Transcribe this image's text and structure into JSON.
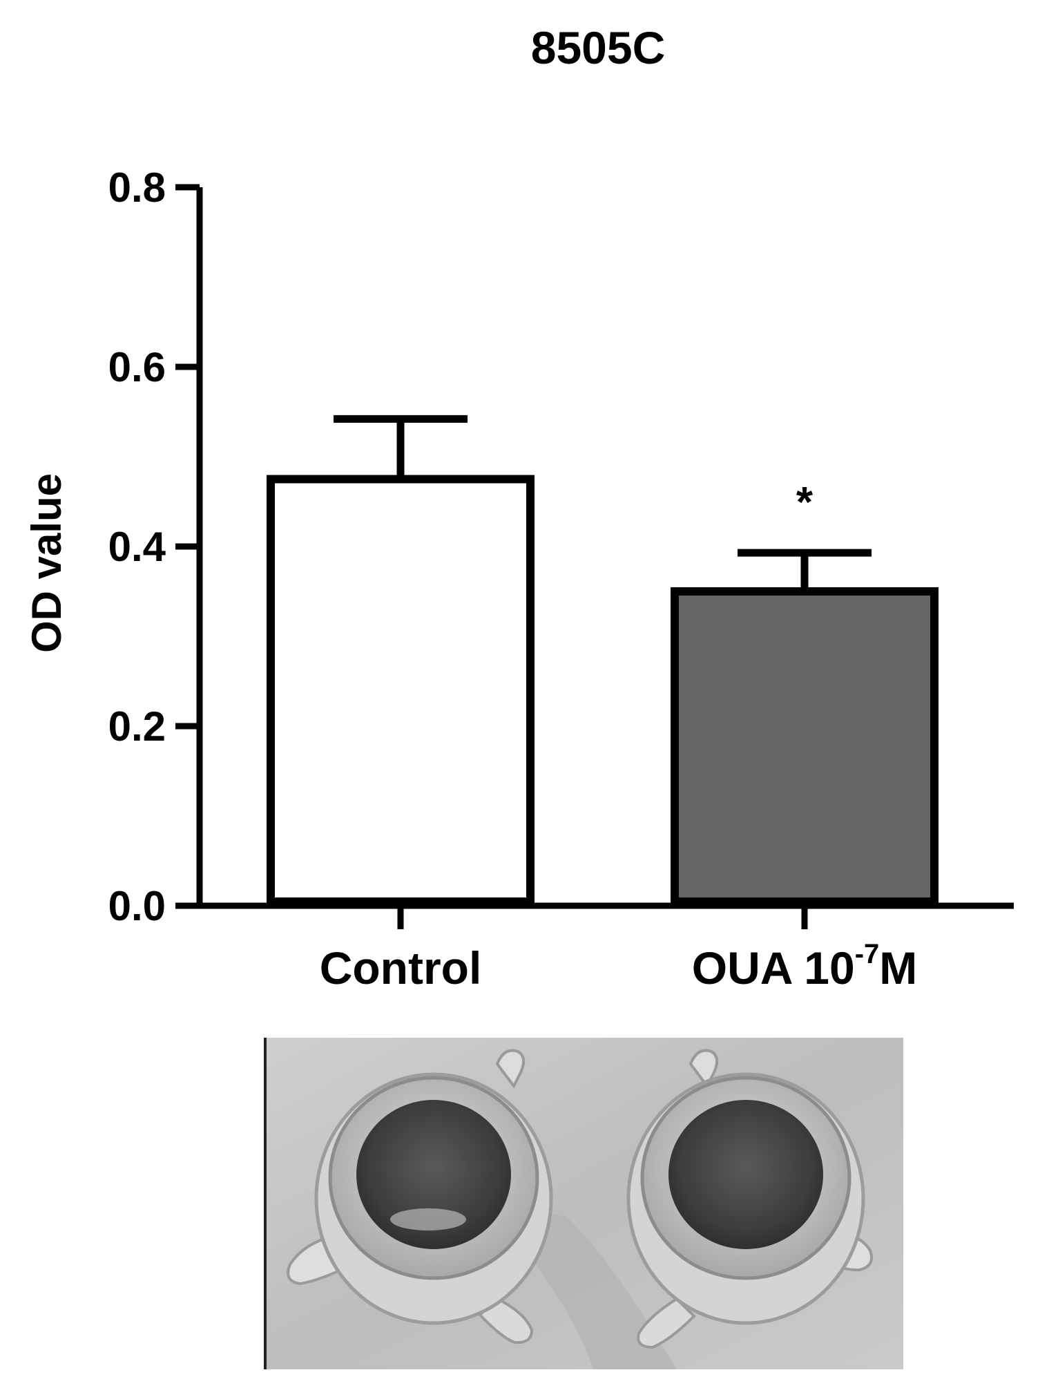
{
  "chart_data": {
    "type": "bar",
    "title": "8505C",
    "ylabel": "OD value",
    "xlabel": "",
    "ylim": [
      0,
      0.8
    ],
    "yticks": [
      "0.0",
      "0.2",
      "0.4",
      "0.6",
      "0.8"
    ],
    "categories": [
      {
        "base": "Control",
        "exp": "",
        "tail": ""
      },
      {
        "base": "OUA 10",
        "exp": "-7",
        "tail": "M"
      }
    ],
    "values": [
      0.475,
      0.35
    ],
    "errors": [
      0.067,
      0.043
    ],
    "annotations": [
      "",
      "*"
    ],
    "colors": {
      "bar_fills": [
        "#ffffff",
        "#666666"
      ],
      "bar_stroke": "#000000",
      "axis": "#000000"
    }
  },
  "photo": {
    "content": "two-wells-photograph"
  }
}
